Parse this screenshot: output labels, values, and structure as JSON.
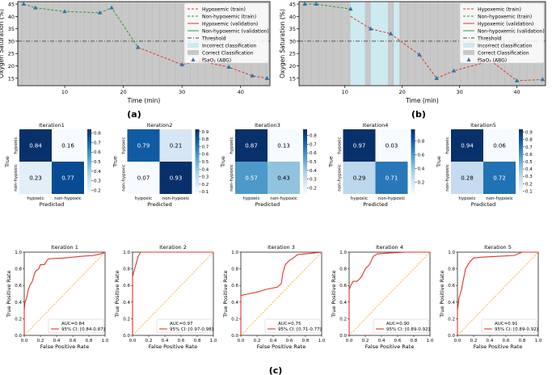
{
  "panel_labels": {
    "a": "(a)",
    "b": "(b)",
    "c": "(c)"
  },
  "colors": {
    "bg_shade": "#c8c8c8",
    "cyan_shade": "#cdeaf0",
    "train_hyp": "#e8312b",
    "train_non": "#2e9a30",
    "threshold": "#444444",
    "marker": "#2878b0",
    "roc": "#e8312b",
    "diag": "#f5a623"
  },
  "chart_data": [
    {
      "id": "a",
      "type": "line",
      "xlabel": "Time (min)",
      "ylabel": "Oxygen Saturation (%)",
      "xlim": [
        2,
        45
      ],
      "ylim": [
        12,
        46
      ],
      "xticks": [
        10,
        20,
        30,
        40
      ],
      "yticks": [
        15,
        20,
        25,
        30,
        35,
        40,
        45
      ],
      "threshold": 30,
      "gray_spans": [
        [
          2,
          45
        ]
      ],
      "cyan_spans": [],
      "series": [
        {
          "name": "Non-hypoxemic (train)",
          "role": "non_train",
          "x": [
            3,
            5,
            10,
            16,
            18,
            22.5
          ],
          "y": [
            45,
            43.5,
            42,
            41.5,
            43.5,
            27.5
          ]
        },
        {
          "name": "Hypoxemic (train)",
          "role": "hyp_train",
          "x": [
            22.5,
            30,
            33,
            38,
            42,
            44.5
          ],
          "y": [
            27.5,
            20.5,
            22,
            19.5,
            16,
            15
          ]
        }
      ],
      "markers": {
        "x": [
          3,
          5,
          10,
          16,
          18,
          22.5,
          30,
          33,
          38,
          42,
          44.5
        ],
        "y": [
          45,
          43.5,
          42,
          41.5,
          43.5,
          27.5,
          20.5,
          22,
          19.5,
          16,
          15
        ]
      },
      "legend": [
        "Hypoxemic (train)",
        "Non-hypoxemic (train)",
        "Hypoxemic (validation)",
        "Non-hypoxemic (validation)",
        "Threshold",
        "Incorrect classification",
        "Correct Classification",
        "fSaO₂ (ABG)"
      ]
    },
    {
      "id": "b",
      "type": "line",
      "xlabel": "Time (min)",
      "ylabel": "Oxygen Saturation (%)",
      "xlim": [
        2,
        45
      ],
      "ylim": [
        12,
        46
      ],
      "xticks": [
        10,
        20,
        30,
        40
      ],
      "yticks": [
        15,
        20,
        25,
        30,
        35,
        40,
        45
      ],
      "threshold": 30,
      "gray_spans": [
        [
          2,
          11
        ],
        [
          11,
          45
        ]
      ],
      "cyan_spans": [
        [
          11,
          13.5
        ],
        [
          14.5,
          17.5
        ],
        [
          18.5,
          19.5
        ]
      ],
      "series": [
        {
          "name": "Non-hypoxemic (train)",
          "role": "non_train",
          "x": [
            3,
            5,
            11
          ],
          "y": [
            45,
            45,
            43
          ]
        },
        {
          "name": "Hypoxemic (validation)",
          "role": "hyp_val",
          "x": [
            11,
            14.5,
            18,
            20,
            23,
            26,
            29,
            33,
            35.5,
            40,
            44.5
          ],
          "y": [
            40,
            35,
            33,
            29.5,
            24.5,
            15,
            18,
            20.5,
            22,
            14,
            14.5
          ]
        }
      ],
      "markers": {
        "x": [
          3,
          5,
          11,
          14.5,
          18,
          23,
          26,
          29,
          40,
          44.5
        ],
        "y": [
          45,
          45,
          43,
          35,
          33,
          24.5,
          15,
          18,
          14,
          14.5
        ]
      },
      "legend": [
        "Hypoxemic (train)",
        "Non-hypoxemic (train)",
        "Hypoxemic (validation)",
        "Non-hypoxemic (validation)",
        "Threshold",
        "Incorrect classification",
        "Correct Classification",
        "fSaO₂ (ABG)"
      ]
    },
    {
      "id": "cm1",
      "type": "heatmap",
      "title": "Iteration1",
      "matrix": [
        [
          0.84,
          0.16
        ],
        [
          0.23,
          0.77
        ]
      ],
      "row_labels": [
        "hypoxic",
        "non-hypoxic"
      ],
      "col_labels": [
        "hypoxic",
        "non-hypoxic"
      ],
      "xlabel": "Predicted",
      "ylabel": "True",
      "colorbar_ticks": [
        "0.8",
        "0.7",
        "0.6",
        "0.5",
        "0.4",
        "0.3",
        "0.2"
      ],
      "vmin": 0.16,
      "vmax": 0.84
    },
    {
      "id": "cm2",
      "type": "heatmap",
      "title": "Iteration2",
      "matrix": [
        [
          0.79,
          0.21
        ],
        [
          0.07,
          0.93
        ]
      ],
      "row_labels": [
        "hypoxic",
        "non-hypoxic"
      ],
      "col_labels": [
        "hypoxic",
        "non-hypoxic"
      ],
      "xlabel": "Predicted",
      "ylabel": "True",
      "colorbar_ticks": [
        "0.9",
        "0.8",
        "0.7",
        "0.6",
        "0.5",
        "0.4",
        "0.3",
        "0.2",
        "0.1"
      ],
      "vmin": 0.07,
      "vmax": 0.93
    },
    {
      "id": "cm3",
      "type": "heatmap",
      "title": "Iteration3",
      "matrix": [
        [
          0.87,
          0.13
        ],
        [
          0.57,
          0.43
        ]
      ],
      "row_labels": [
        "hypoxic",
        "non-hypoxic"
      ],
      "col_labels": [
        "hypoxic",
        "non-hypoxic"
      ],
      "xlabel": "Predicted",
      "ylabel": "True",
      "colorbar_ticks": [
        "0.8",
        "0.7",
        "0.6",
        "0.5",
        "0.4",
        "0.3",
        "0.2"
      ],
      "vmin": 0.13,
      "vmax": 0.87
    },
    {
      "id": "cm4",
      "type": "heatmap",
      "title": "Iteration4",
      "matrix": [
        [
          0.97,
          0.03
        ],
        [
          0.29,
          0.71
        ]
      ],
      "row_labels": [
        "hypoxic",
        "non-hypoxic"
      ],
      "col_labels": [
        "hypoxic",
        "non-hypoxic"
      ],
      "xlabel": "Predicted",
      "ylabel": "True",
      "colorbar_ticks": [
        "0.8",
        "0.6",
        "0.4",
        "0.2"
      ],
      "vmin": 0.03,
      "vmax": 0.97
    },
    {
      "id": "cm5",
      "type": "heatmap",
      "title": "Iteration5",
      "matrix": [
        [
          0.94,
          0.06
        ],
        [
          0.28,
          0.72
        ]
      ],
      "row_labels": [
        "hypoxic",
        "non-hypoxic"
      ],
      "col_labels": [
        "hypoxic",
        "non-hypoxic"
      ],
      "xlabel": "Predicted",
      "ylabel": "True",
      "colorbar_ticks": [
        "0.9",
        "0.8",
        "0.7",
        "0.6",
        "0.5",
        "0.4",
        "0.3",
        "0.2",
        "0.1"
      ],
      "vmin": 0.06,
      "vmax": 0.94
    },
    {
      "id": "roc1",
      "type": "line",
      "title": "Iteration 1",
      "xlabel": "False Positive Rate",
      "ylabel": "True Positive Rate",
      "xlim": [
        0,
        1
      ],
      "ylim": [
        0,
        1
      ],
      "ticks": [
        "0.0",
        "0.2",
        "0.4",
        "0.6",
        "0.8",
        "1.0"
      ],
      "auc_label": "AUC=0.84",
      "ci_label": "95% CI: [0.84-0.87]",
      "fpr": [
        0,
        0,
        0.01,
        0.03,
        0.05,
        0.07,
        0.1,
        0.13,
        0.15,
        0.18,
        0.2,
        0.25,
        0.28,
        0.3,
        0.5,
        0.7,
        0.85,
        0.95,
        1.0
      ],
      "tpr": [
        0,
        0.3,
        0.4,
        0.45,
        0.55,
        0.6,
        0.65,
        0.75,
        0.78,
        0.8,
        0.85,
        0.85,
        0.9,
        0.92,
        0.93,
        0.95,
        0.96,
        0.98,
        1.0
      ]
    },
    {
      "id": "roc2",
      "type": "line",
      "title": "Iteration 2",
      "xlabel": "False Positive Rate",
      "ylabel": "True Positive Rate",
      "xlim": [
        0,
        1
      ],
      "ylim": [
        0,
        1
      ],
      "ticks": [
        "0.0",
        "0.2",
        "0.4",
        "0.6",
        "0.8",
        "1.0"
      ],
      "auc_label": "AUC=0.97",
      "ci_label": "95% CI: [0.97-0.98]",
      "fpr": [
        0,
        0,
        0.02,
        0.05,
        0.07,
        0.1,
        1.0
      ],
      "tpr": [
        0,
        0.7,
        0.78,
        0.88,
        0.95,
        1.0,
        1.0
      ]
    },
    {
      "id": "roc3",
      "type": "line",
      "title": "Iteration 3",
      "xlabel": "False Positive Rate",
      "ylabel": "True Positive Rate",
      "xlim": [
        0,
        1
      ],
      "ylim": [
        0,
        1
      ],
      "ticks": [
        "0.0",
        "0.2",
        "0.4",
        "0.6",
        "0.8",
        "1.0"
      ],
      "auc_label": "AUC=0.75",
      "ci_label": "95% CI: [0.71-0.77]",
      "fpr": [
        0,
        0,
        0.1,
        0.2,
        0.3,
        0.45,
        0.5,
        0.52,
        0.55,
        0.6,
        0.65,
        0.7,
        0.8,
        0.9,
        1.0
      ],
      "tpr": [
        0,
        0.48,
        0.5,
        0.52,
        0.55,
        0.58,
        0.62,
        0.75,
        0.85,
        0.9,
        0.93,
        0.97,
        0.98,
        0.99,
        1.0
      ]
    },
    {
      "id": "roc4",
      "type": "line",
      "title": "Iteration 4",
      "xlabel": "False Positive Rate",
      "ylabel": "True Positive Rate",
      "xlim": [
        0,
        1
      ],
      "ylim": [
        0,
        1
      ],
      "ticks": [
        "0.0",
        "0.2",
        "0.4",
        "0.6",
        "0.8",
        "1.0"
      ],
      "auc_label": "AUC=0.90",
      "ci_label": "95% CI: [0.89-0.92]",
      "fpr": [
        0,
        0,
        0.02,
        0.05,
        0.1,
        0.15,
        0.2,
        0.25,
        0.3,
        0.35,
        0.5,
        0.7,
        0.9,
        1.0
      ],
      "tpr": [
        0,
        0.55,
        0.6,
        0.65,
        0.65,
        0.7,
        0.8,
        0.85,
        0.95,
        0.98,
        0.99,
        1.0,
        1.0,
        1.0
      ]
    },
    {
      "id": "roc5",
      "type": "line",
      "title": "Iteration 5",
      "xlabel": "False Positive Rate",
      "ylabel": "True Positive Rate",
      "xlim": [
        0,
        1
      ],
      "ylim": [
        0,
        1
      ],
      "ticks": [
        "0.0",
        "0.2",
        "0.4",
        "0.6",
        "0.8",
        "1.0"
      ],
      "auc_label": "AUC=0.91",
      "ci_label": "95% CI: [0.89-0.92]",
      "fpr": [
        0,
        0,
        0.02,
        0.05,
        0.08,
        0.1,
        0.15,
        0.2,
        0.3,
        0.5,
        0.7,
        0.8,
        1.0
      ],
      "tpr": [
        0,
        0.3,
        0.45,
        0.55,
        0.7,
        0.8,
        0.88,
        0.93,
        0.94,
        0.95,
        0.96,
        1.0,
        1.0
      ]
    }
  ]
}
